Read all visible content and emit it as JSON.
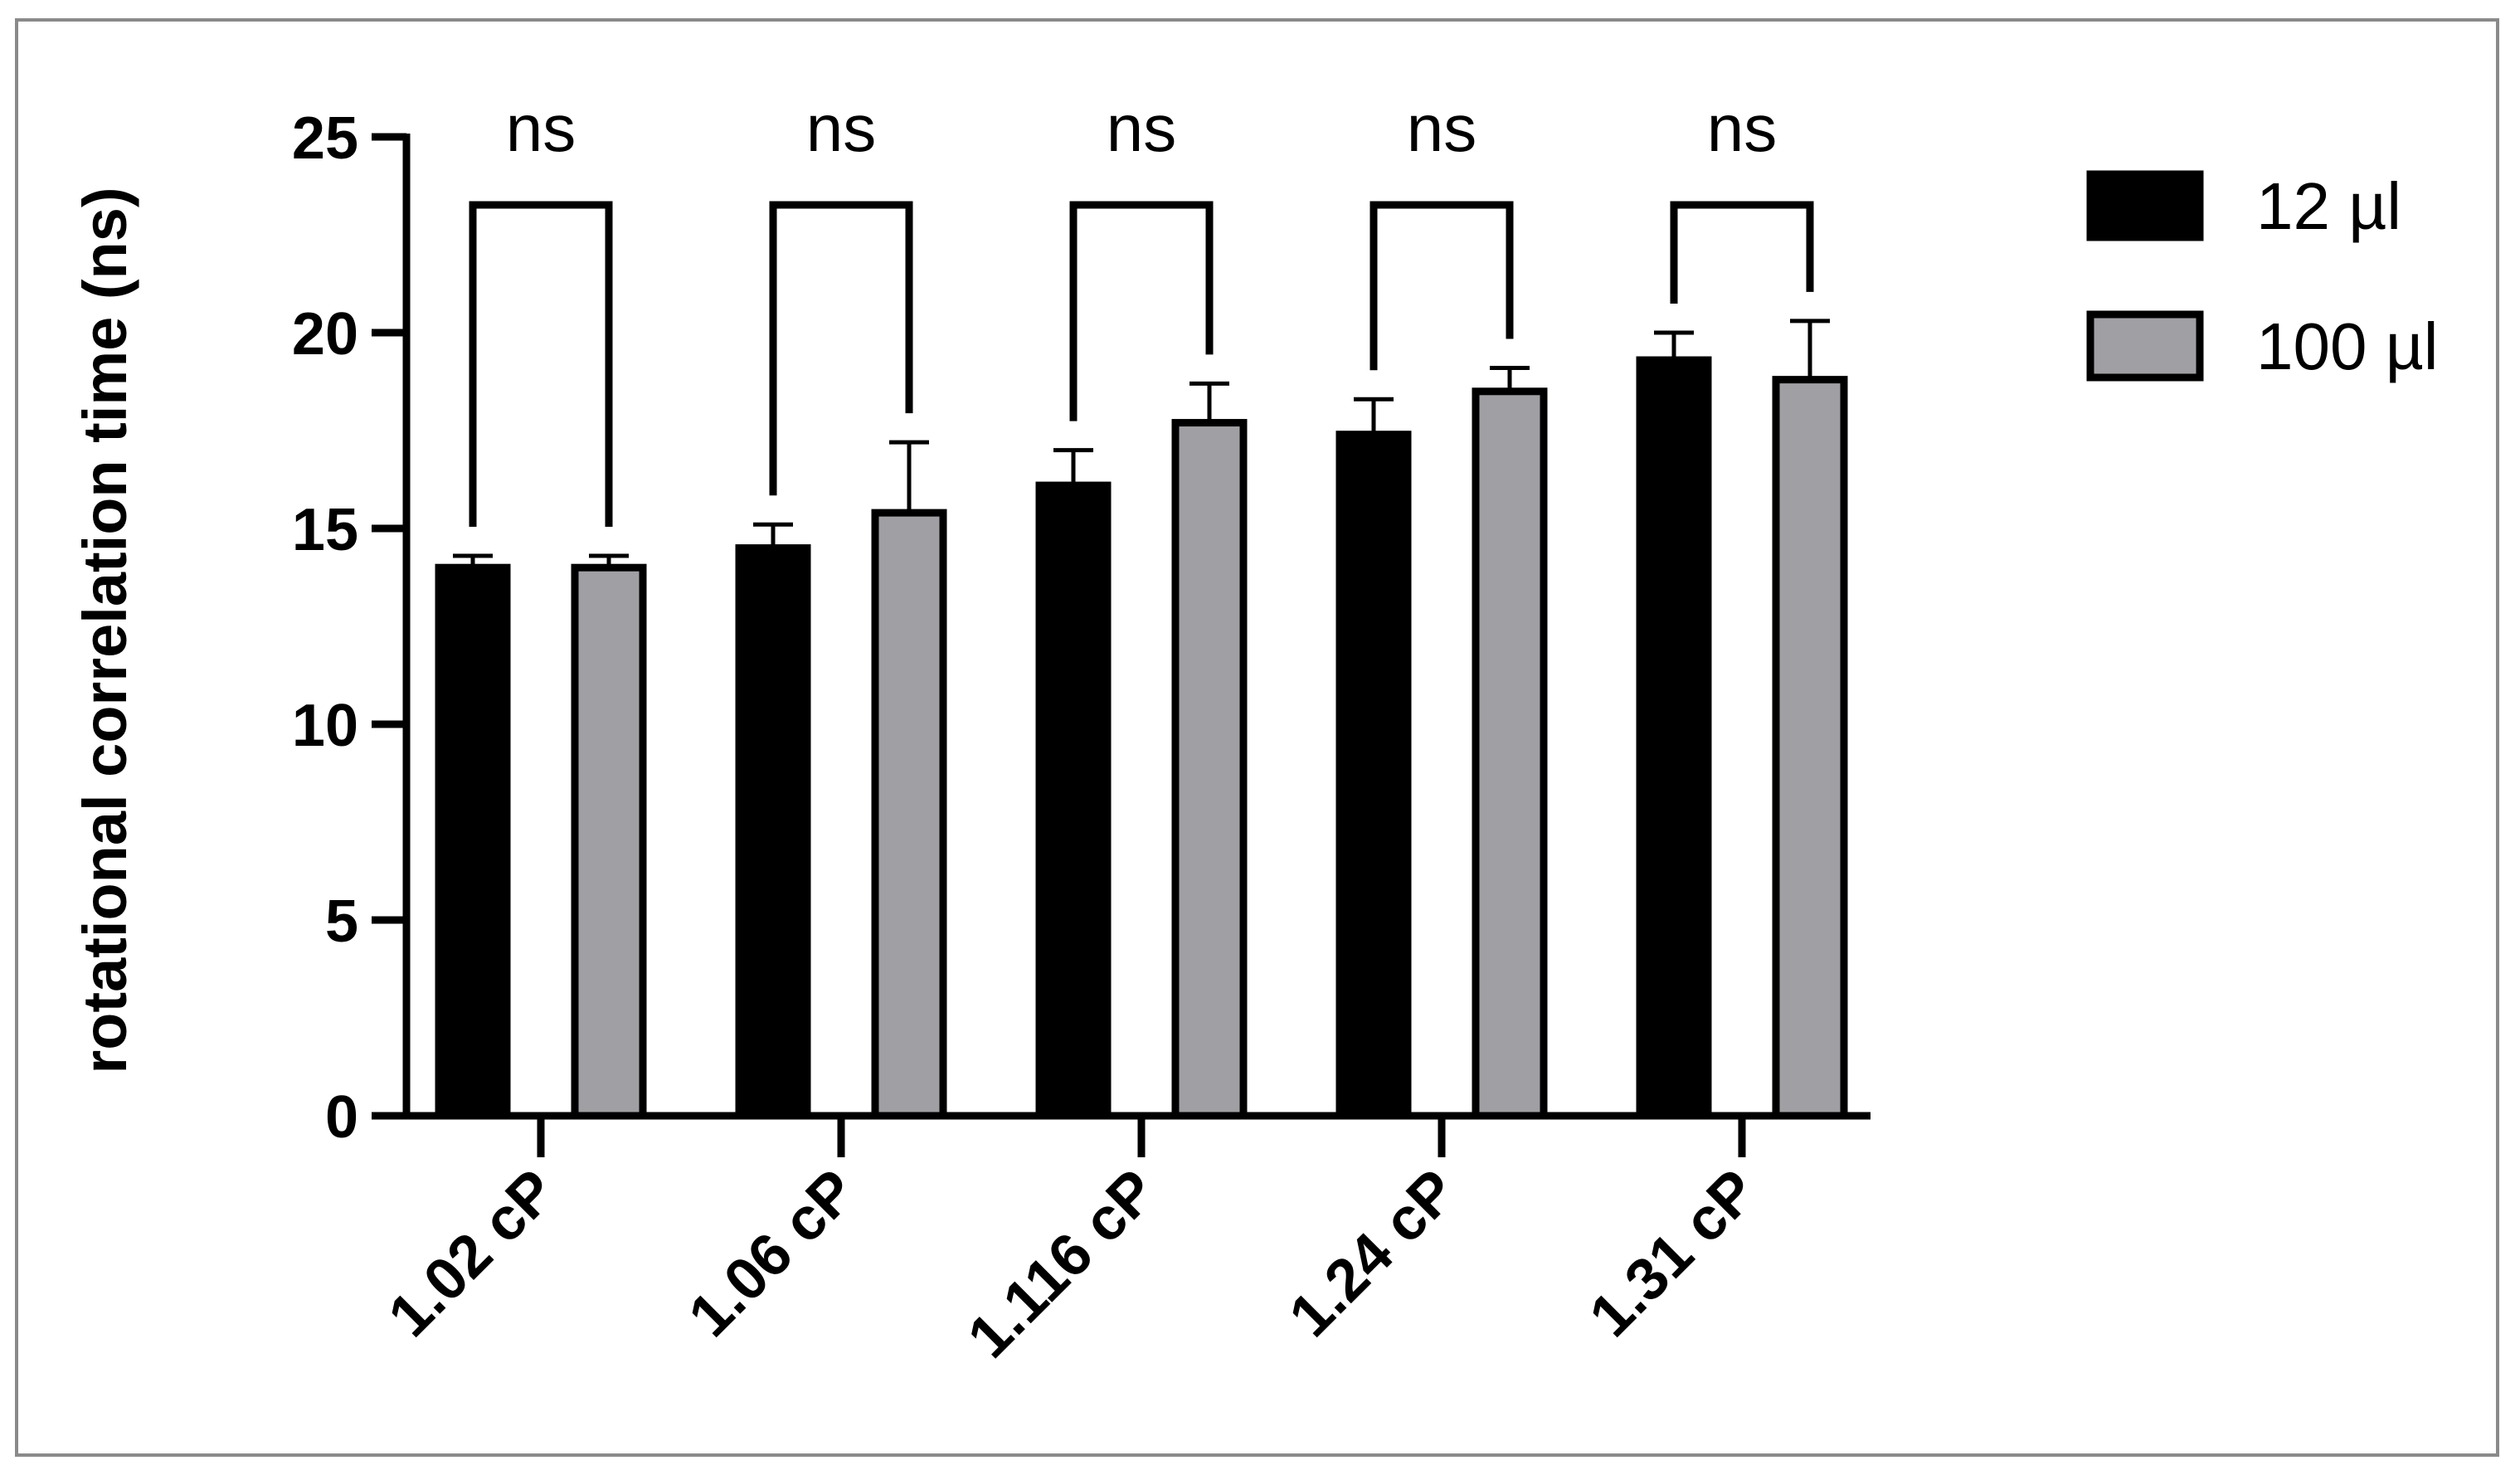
{
  "chart_data": {
    "type": "bar",
    "title": "",
    "xlabel": "",
    "ylabel": "rotational correlation time (ns)",
    "ylim": [
      0,
      25
    ],
    "yticks": [
      0,
      5,
      10,
      15,
      20,
      25
    ],
    "categories": [
      "1.02 cP",
      "1.06 cP",
      "1.116 cP",
      "1.24 cP",
      "1.31 cP"
    ],
    "series": [
      {
        "name": "12 µl",
        "values": [
          14.0,
          14.5,
          16.1,
          17.4,
          19.3
        ],
        "errors": [
          0.3,
          0.6,
          0.9,
          0.9,
          0.7
        ],
        "color": "#000000"
      },
      {
        "name": "100 µl",
        "values": [
          14.0,
          15.4,
          17.7,
          18.5,
          18.8
        ],
        "errors": [
          0.3,
          1.8,
          1.0,
          0.6,
          1.5
        ],
        "color": "#a0a0a4"
      }
    ],
    "significance": [
      "ns",
      "ns",
      "ns",
      "ns",
      "ns"
    ],
    "legend_position": "top-right",
    "grid": false
  }
}
